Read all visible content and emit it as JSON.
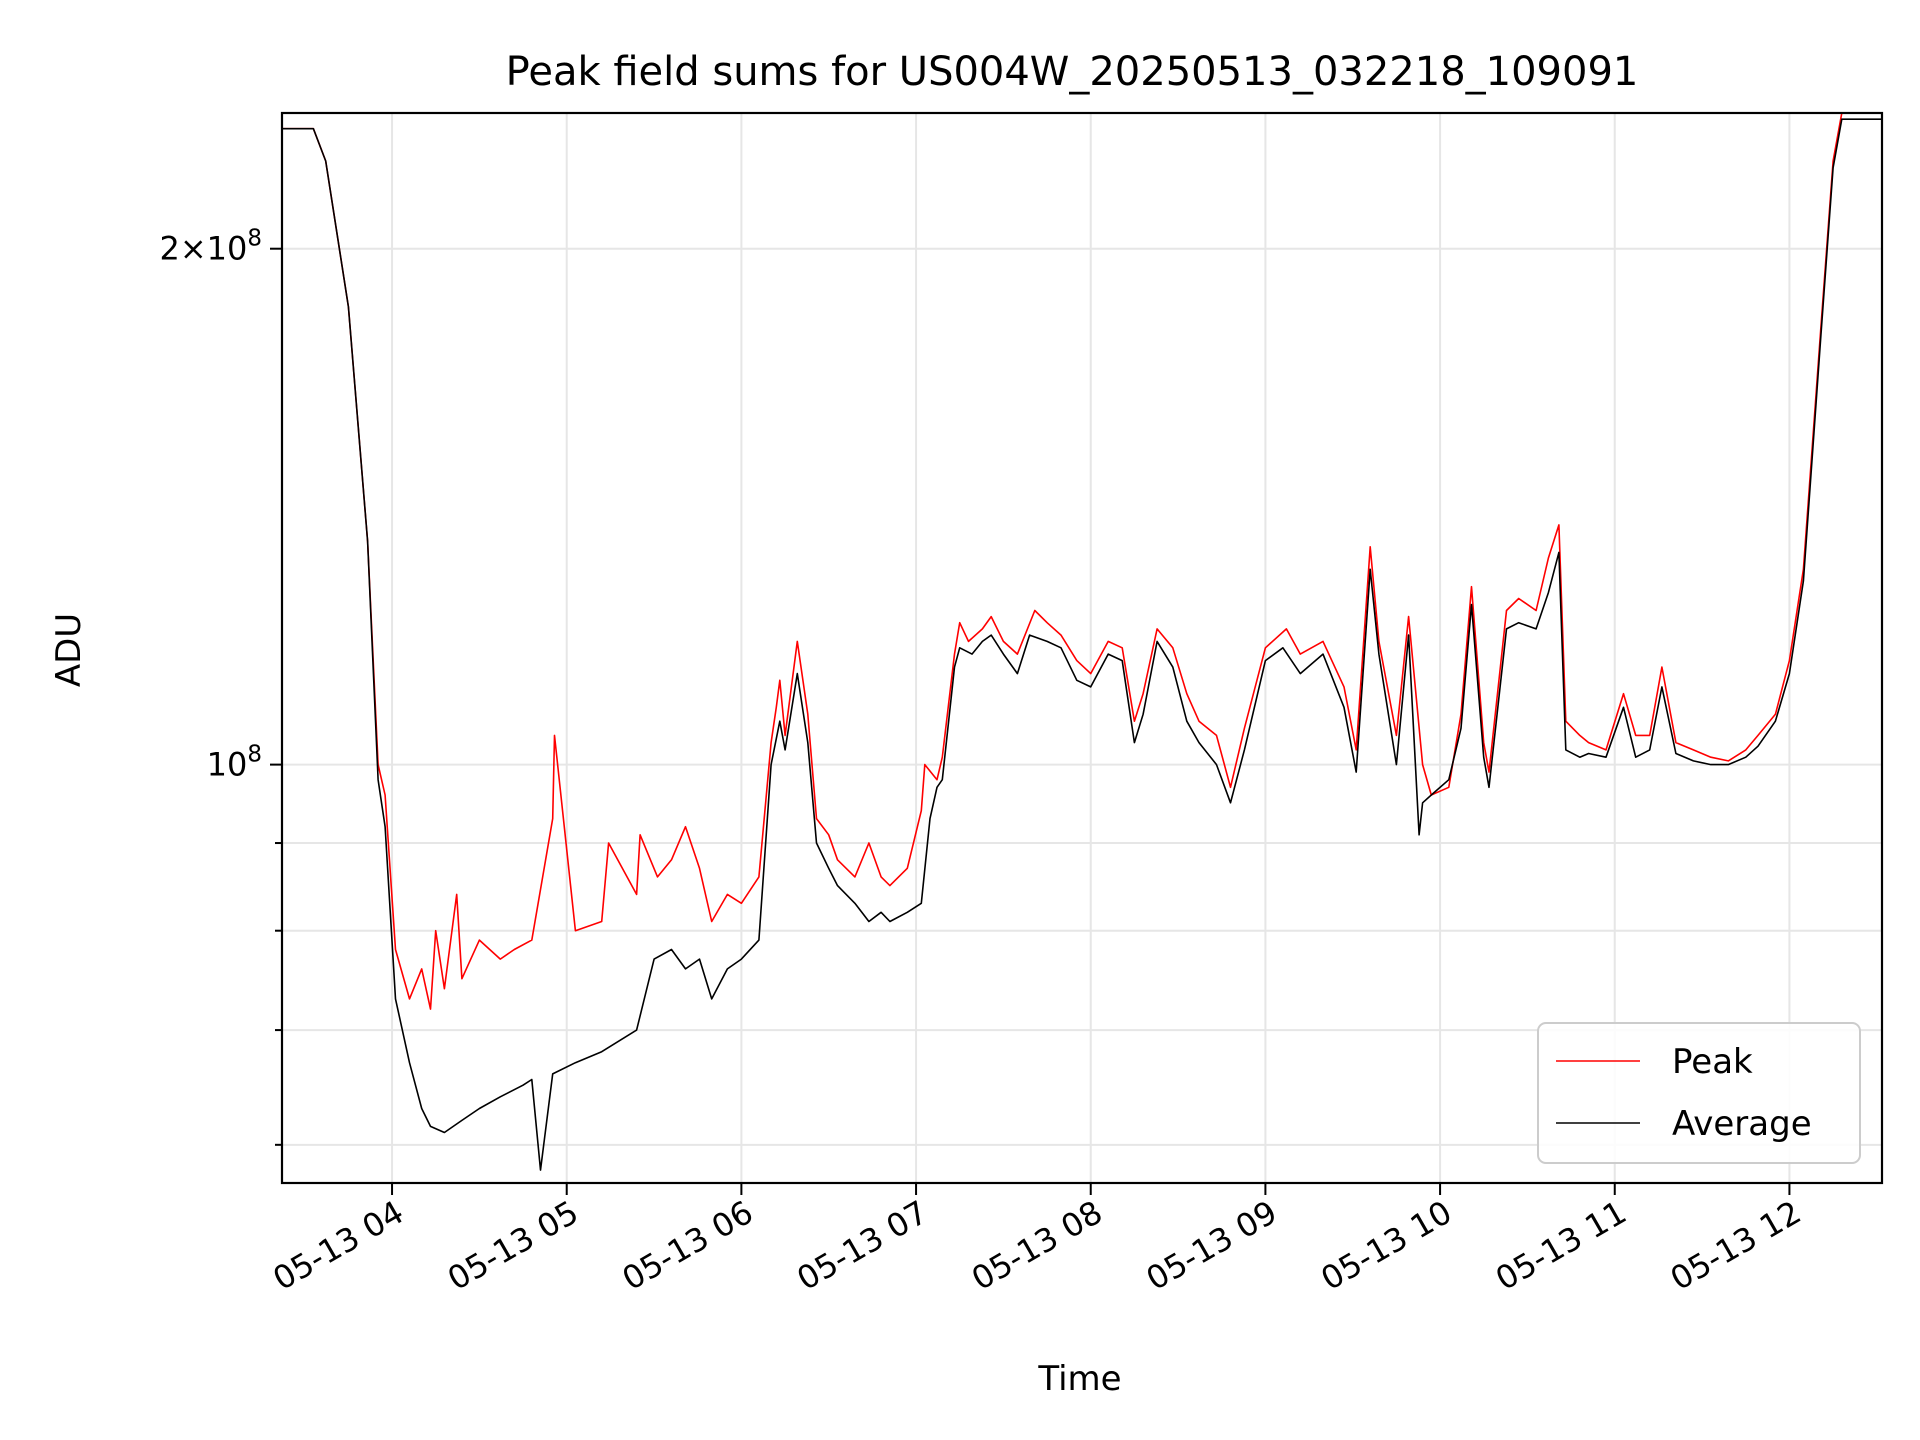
{
  "chart_data": {
    "type": "line",
    "title": "Peak field sums for US004W_20250513_032218_109091",
    "xlabel": "Time",
    "ylabel": "ADU",
    "x_tick_labels": [
      "05-13 04",
      "05-13 05",
      "05-13 06",
      "05-13 07",
      "05-13 08",
      "05-13 09",
      "05-13 10",
      "05-13 11",
      "05-13 12"
    ],
    "x_ticks_hours": [
      4,
      5,
      6,
      7,
      8,
      9,
      10,
      11,
      12
    ],
    "xlim_hours": [
      3.37,
      12.53
    ],
    "y_scale": "log",
    "y_major_ticks": [
      {
        "value": 100000000,
        "mantissa": "",
        "exponent": "8"
      },
      {
        "value": 200000000,
        "mantissa": "2×",
        "exponent": "8"
      }
    ],
    "y_minor_ticks": [
      60000000,
      70000000,
      80000000,
      90000000
    ],
    "ylim": [
      57000000,
      240000000
    ],
    "grid": true,
    "legend": {
      "position": "lower-right",
      "entries": [
        "Peak",
        "Average"
      ]
    },
    "series": [
      {
        "name": "Peak",
        "color": "#ff0000",
        "x": [
          3.37,
          3.55,
          3.62,
          3.75,
          3.86,
          3.92,
          3.96,
          4.02,
          4.1,
          4.17,
          4.22,
          4.25,
          4.3,
          4.37,
          4.4,
          4.5,
          4.62,
          4.7,
          4.8,
          4.92,
          4.93,
          5.05,
          5.2,
          5.24,
          5.4,
          5.42,
          5.52,
          5.6,
          5.68,
          5.76,
          5.83,
          5.92,
          6.0,
          6.1,
          6.17,
          6.2,
          6.22,
          6.25,
          6.32,
          6.38,
          6.43,
          6.5,
          6.55,
          6.65,
          6.73,
          6.8,
          6.85,
          6.95,
          7.03,
          7.05,
          7.12,
          7.15,
          7.22,
          7.25,
          7.3,
          7.38,
          7.43,
          7.5,
          7.58,
          7.68,
          7.75,
          7.83,
          7.92,
          8.0,
          8.1,
          8.18,
          8.25,
          8.3,
          8.38,
          8.47,
          8.55,
          8.62,
          8.72,
          8.8,
          8.88,
          9.0,
          9.12,
          9.2,
          9.33,
          9.45,
          9.52,
          9.6,
          9.65,
          9.75,
          9.82,
          9.9,
          9.95,
          10.05,
          10.12,
          10.18,
          10.25,
          10.28,
          10.38,
          10.45,
          10.55,
          10.62,
          10.68,
          10.72,
          10.8,
          10.85,
          10.95,
          11.05,
          11.12,
          11.2,
          11.27,
          11.35,
          11.45,
          11.55,
          11.65,
          11.75,
          11.82,
          11.92,
          12.0,
          12.08,
          12.18,
          12.25,
          12.3,
          12.53
        ],
        "y": [
          235000000,
          235000000,
          225000000,
          185000000,
          135000000,
          100000000,
          96000000,
          78000000,
          73000000,
          76000000,
          72000000,
          80000000,
          74000000,
          84000000,
          75000000,
          79000000,
          77000000,
          78000000,
          79000000,
          93000000,
          104000000,
          80000000,
          81000000,
          90000000,
          84000000,
          91000000,
          86000000,
          88000000,
          92000000,
          87000000,
          81000000,
          84000000,
          83000000,
          86000000,
          103000000,
          108000000,
          112000000,
          104000000,
          118000000,
          107000000,
          93000000,
          91000000,
          88000000,
          86000000,
          90000000,
          86000000,
          85000000,
          87000000,
          94000000,
          100000000,
          98000000,
          101000000,
          116000000,
          121000000,
          118000000,
          120000000,
          122000000,
          118000000,
          116000000,
          123000000,
          121000000,
          119000000,
          115000000,
          113000000,
          118000000,
          117000000,
          106000000,
          110000000,
          120000000,
          117000000,
          110000000,
          106000000,
          104000000,
          97000000,
          105000000,
          117000000,
          120000000,
          116000000,
          118000000,
          111000000,
          102000000,
          134000000,
          118000000,
          104000000,
          122000000,
          100000000,
          96000000,
          97000000,
          107000000,
          127000000,
          103000000,
          99000000,
          123000000,
          125000000,
          123000000,
          132000000,
          138000000,
          106000000,
          104000000,
          103000000,
          102000000,
          110000000,
          104000000,
          104000000,
          114000000,
          103000000,
          102000000,
          101000000,
          100500000,
          102000000,
          104000000,
          107000000,
          115000000,
          130000000,
          180000000,
          225000000,
          240000000,
          240000000
        ]
      },
      {
        "name": "Average",
        "color": "#000000",
        "x": [
          3.37,
          3.55,
          3.62,
          3.75,
          3.86,
          3.92,
          3.96,
          4.02,
          4.1,
          4.17,
          4.22,
          4.3,
          4.4,
          4.5,
          4.62,
          4.75,
          4.8,
          4.85,
          4.92,
          5.05,
          5.2,
          5.4,
          5.5,
          5.6,
          5.68,
          5.76,
          5.83,
          5.92,
          6.0,
          6.1,
          6.17,
          6.22,
          6.25,
          6.32,
          6.38,
          6.43,
          6.5,
          6.55,
          6.65,
          6.73,
          6.8,
          6.85,
          6.95,
          7.03,
          7.08,
          7.12,
          7.15,
          7.22,
          7.25,
          7.32,
          7.38,
          7.43,
          7.5,
          7.58,
          7.65,
          7.75,
          7.83,
          7.92,
          8.0,
          8.1,
          8.18,
          8.25,
          8.3,
          8.38,
          8.47,
          8.55,
          8.62,
          8.72,
          8.8,
          8.88,
          9.0,
          9.1,
          9.2,
          9.33,
          9.45,
          9.52,
          9.6,
          9.65,
          9.75,
          9.82,
          9.88,
          9.9,
          9.95,
          10.05,
          10.12,
          10.18,
          10.25,
          10.28,
          10.38,
          10.45,
          10.55,
          10.62,
          10.68,
          10.72,
          10.8,
          10.85,
          10.95,
          11.05,
          11.12,
          11.2,
          11.27,
          11.35,
          11.45,
          11.55,
          11.65,
          11.75,
          11.82,
          11.92,
          12.0,
          12.08,
          12.18,
          12.25,
          12.3,
          12.53
        ],
        "y": [
          235000000,
          235000000,
          225000000,
          185000000,
          135000000,
          98000000,
          92000000,
          73000000,
          67000000,
          63000000,
          61500000,
          61000000,
          62000000,
          63000000,
          64000000,
          65000000,
          65500000,
          58000000,
          66000000,
          67000000,
          68000000,
          70000000,
          77000000,
          78000000,
          76000000,
          77000000,
          73000000,
          76000000,
          77000000,
          79000000,
          100000000,
          106000000,
          102000000,
          113000000,
          103000000,
          90000000,
          87000000,
          85000000,
          83000000,
          81000000,
          82000000,
          81000000,
          82000000,
          83000000,
          93000000,
          97000000,
          98000000,
          114000000,
          117000000,
          116000000,
          118000000,
          119000000,
          116000000,
          113000000,
          119000000,
          118000000,
          117000000,
          112000000,
          111000000,
          116000000,
          115000000,
          103000000,
          107000000,
          118000000,
          114000000,
          106000000,
          103000000,
          100000000,
          95000000,
          102000000,
          115000000,
          117000000,
          113000000,
          116000000,
          108000000,
          99000000,
          130000000,
          116000000,
          100000000,
          119000000,
          91000000,
          95000000,
          96000000,
          98000000,
          105000000,
          124000000,
          101000000,
          97000000,
          120000000,
          121000000,
          120000000,
          126000000,
          133000000,
          102000000,
          101000000,
          101500000,
          101000000,
          108000000,
          101000000,
          102000000,
          111000000,
          101500000,
          100500000,
          100000000,
          100000000,
          101000000,
          102500000,
          106000000,
          113000000,
          128000000,
          178000000,
          223000000,
          238000000,
          238000000
        ]
      }
    ]
  }
}
